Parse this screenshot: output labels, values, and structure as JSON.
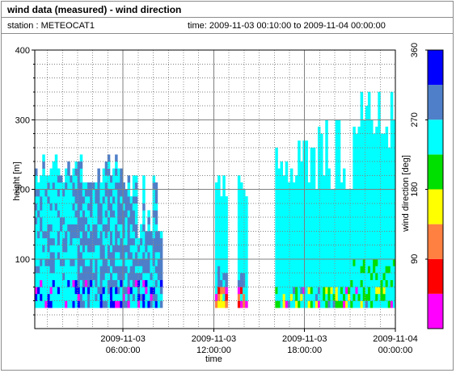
{
  "header": {
    "title": "wind data (measured) - wind direction",
    "station_label": "station : METEOCAT1",
    "time_label": "time: 2009-11-03 00:10:00 to 2009-11-04 00:00:00"
  },
  "chart_data": {
    "type": "heatmap",
    "title": "wind data (measured) - wind direction",
    "xlabel": "time",
    "ylabel": "height [m]",
    "colorbar_label": "wind direction [deg]",
    "xlim": [
      "2009-11-03 00:10:00",
      "2009-11-04 00:00:00"
    ],
    "ylim": [
      0,
      400
    ],
    "x_ticks": [
      {
        "value": "2009-11-03 06:00:00",
        "line1": "2009-11-03",
        "line2": "06:00:00"
      },
      {
        "value": "2009-11-03 12:00:00",
        "line1": "2009-11-03",
        "line2": "12:00:00"
      },
      {
        "value": "2009-11-03 18:00:00",
        "line1": "2009-11-03",
        "line2": "18:00:00"
      },
      {
        "value": "2009-11-04 00:00:00",
        "line1": "2009-11-04",
        "line2": "00:00:00"
      }
    ],
    "y_ticks": [
      100,
      200,
      300,
      400
    ],
    "colorbar": {
      "min": 0,
      "max": 360,
      "ticks": [
        90,
        180,
        270,
        360
      ],
      "bins": [
        {
          "from": 0,
          "to": 45,
          "color": "#ff00ff"
        },
        {
          "from": 45,
          "to": 90,
          "color": "#ff0000"
        },
        {
          "from": 90,
          "to": 135,
          "color": "#ff8040"
        },
        {
          "from": 135,
          "to": 180,
          "color": "#ffff00"
        },
        {
          "from": 180,
          "to": 225,
          "color": "#00e000"
        },
        {
          "from": 225,
          "to": 270,
          "color": "#00ffff"
        },
        {
          "from": 270,
          "to": 315,
          "color": "#4f7fc8"
        },
        {
          "from": 315,
          "to": 360,
          "color": "#0000ff"
        }
      ]
    },
    "data_range": {
      "height_min": 30,
      "height_max": 330
    },
    "grid": true,
    "legend": "colorbar-right"
  }
}
